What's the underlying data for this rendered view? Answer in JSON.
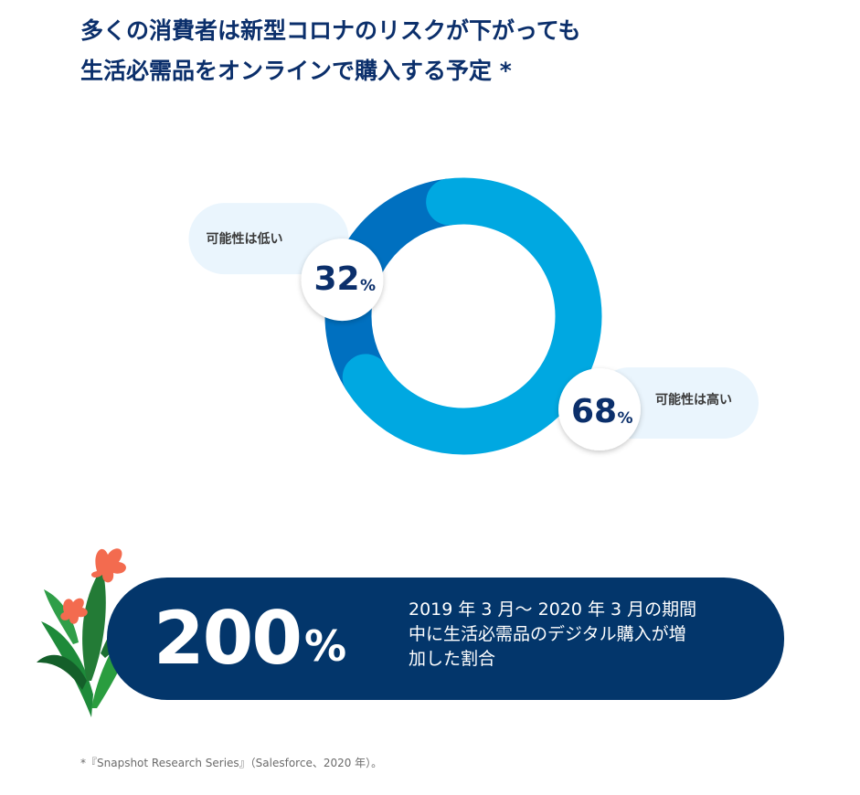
{
  "title": {
    "line1": "多くの消費者は新型コロナのリスクが下がっても",
    "line2": "生活必需品をオンラインで購入する予定 *"
  },
  "chart_data": {
    "type": "pie",
    "categories": [
      "可能性は低い",
      "可能性は高い"
    ],
    "values": [
      32,
      68
    ],
    "unit": "%",
    "colors": {
      "low": "#0070c0",
      "high": "#00a8e1"
    }
  },
  "callout": {
    "value": "200",
    "unit": "%",
    "lines": [
      "2019 年 3 月～ 2020 年 3 月の期間",
      "中に生活必需品のデジタル購入が増",
      "加した割合"
    ]
  },
  "footnote": "*『Snapshot Research Series』（Salesforce、2020 年）。",
  "colors": {
    "navy": "#03366b",
    "title": "#0b2f6b",
    "pill": "#eaf5fd"
  },
  "decoration": {
    "icon": "tropical-leaves-icon"
  }
}
